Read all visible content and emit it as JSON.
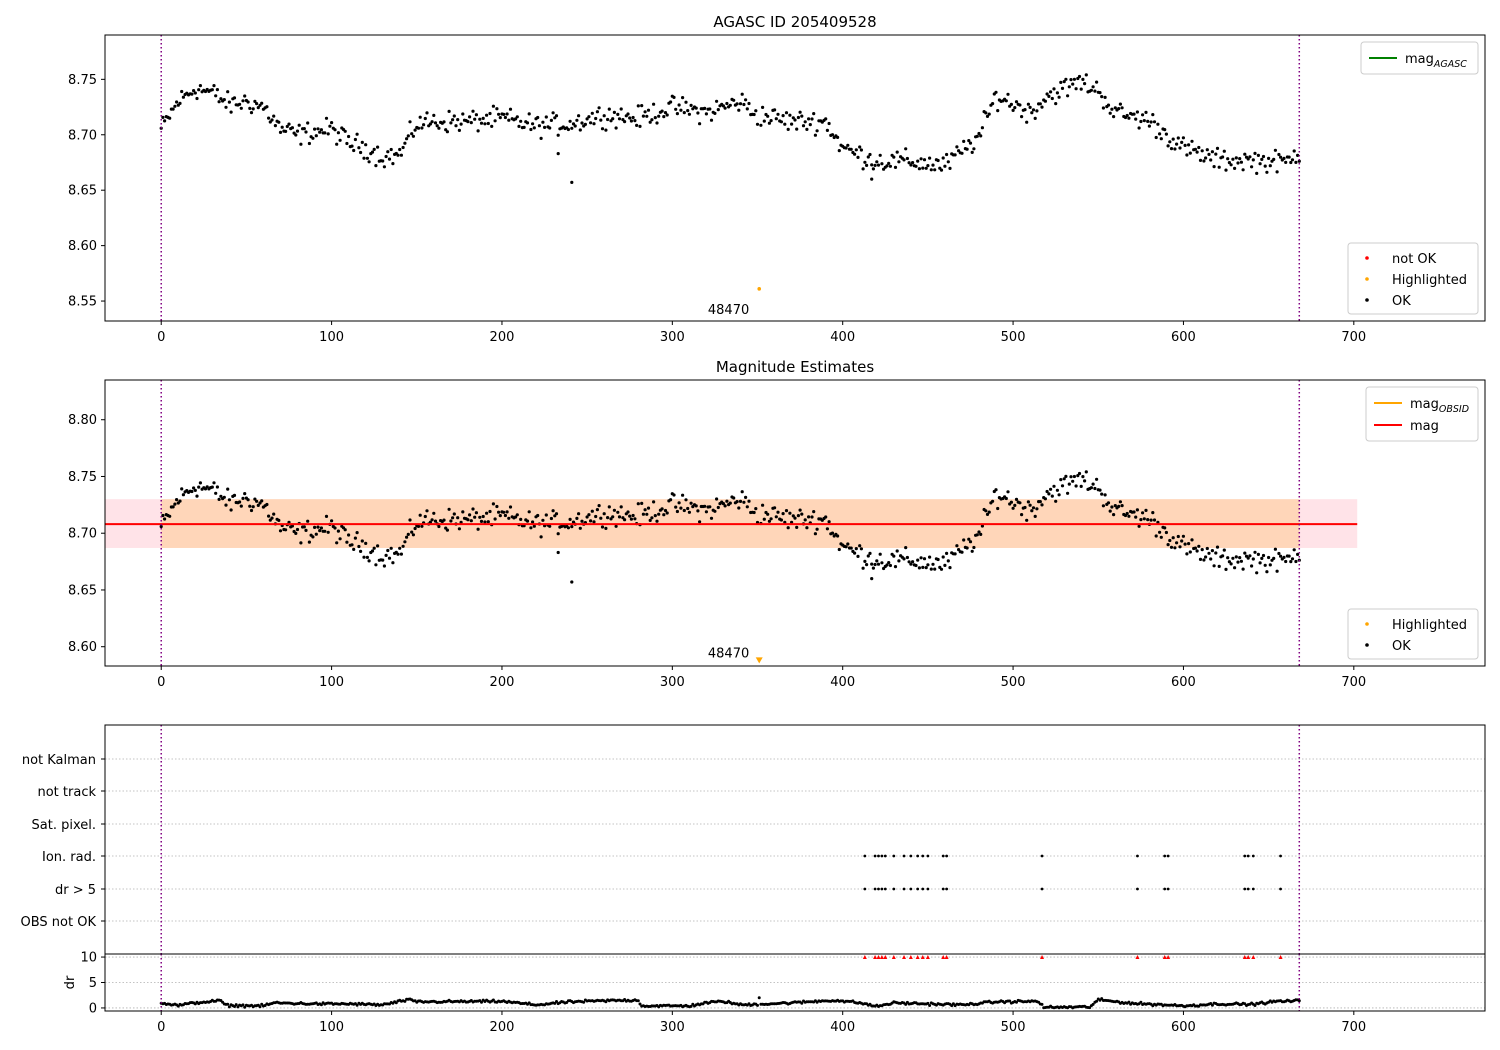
{
  "figure": {
    "obsid_label": "48470"
  },
  "chart_data": [
    {
      "type": "scatter",
      "title": "AGASC ID 205409528",
      "xlim": [
        -33,
        777
      ],
      "ylim": [
        8.532,
        8.79
      ],
      "x_ticks": [
        0,
        100,
        200,
        300,
        400,
        500,
        600,
        700
      ],
      "y_ticks": [
        "8.55",
        "8.60",
        "8.65",
        "8.70",
        "8.75"
      ],
      "vlines": [
        0,
        668
      ],
      "line_legend": {
        "placement": "upper-right",
        "entries": [
          {
            "label": "mag",
            "subscript": "AGASC",
            "color": "#008000"
          }
        ]
      },
      "point_legend": {
        "placement": "lower-right",
        "entries": [
          {
            "label": "not OK",
            "color": "#ff0000"
          },
          {
            "label": "Highlighted",
            "color": "#ffa500"
          },
          {
            "label": "OK",
            "color": "#000000"
          }
        ]
      },
      "highlighted": {
        "x": 351,
        "y": 8.561
      },
      "annotation": {
        "text_key": "obsid_label",
        "x": 333,
        "y": 8.542
      },
      "series_profile": [
        [
          0,
          8.705
        ],
        [
          10,
          8.73
        ],
        [
          20,
          8.742
        ],
        [
          30,
          8.738
        ],
        [
          40,
          8.727
        ],
        [
          50,
          8.73
        ],
        [
          60,
          8.725
        ],
        [
          70,
          8.705
        ],
        [
          80,
          8.7
        ],
        [
          90,
          8.703
        ],
        [
          100,
          8.705
        ],
        [
          110,
          8.693
        ],
        [
          120,
          8.688
        ],
        [
          130,
          8.68
        ],
        [
          140,
          8.682
        ],
        [
          150,
          8.71
        ],
        [
          160,
          8.712
        ],
        [
          180,
          8.712
        ],
        [
          200,
          8.715
        ],
        [
          220,
          8.708
        ],
        [
          240,
          8.71
        ],
        [
          260,
          8.718
        ],
        [
          280,
          8.715
        ],
        [
          300,
          8.725
        ],
        [
          320,
          8.72
        ],
        [
          340,
          8.73
        ],
        [
          350,
          8.718
        ],
        [
          370,
          8.712
        ],
        [
          390,
          8.712
        ],
        [
          400,
          8.688
        ],
        [
          420,
          8.676
        ],
        [
          440,
          8.676
        ],
        [
          460,
          8.672
        ],
        [
          480,
          8.698
        ],
        [
          490,
          8.735
        ],
        [
          500,
          8.728
        ],
        [
          510,
          8.72
        ],
        [
          520,
          8.735
        ],
        [
          540,
          8.748
        ],
        [
          550,
          8.74
        ],
        [
          560,
          8.72
        ],
        [
          580,
          8.713
        ],
        [
          590,
          8.7
        ],
        [
          600,
          8.688
        ],
        [
          620,
          8.677
        ],
        [
          640,
          8.677
        ],
        [
          660,
          8.675
        ],
        [
          668,
          8.685
        ]
      ],
      "outliers": [
        {
          "x": 241,
          "y": 8.657
        },
        {
          "x": 233,
          "y": 8.683
        },
        {
          "x": 417,
          "y": 8.66
        }
      ]
    },
    {
      "type": "scatter",
      "title": "Magnitude Estimates",
      "xlim": [
        -33,
        777
      ],
      "ylim": [
        8.583,
        8.835
      ],
      "x_ticks": [
        0,
        100,
        200,
        300,
        400,
        500,
        600,
        700
      ],
      "y_ticks": [
        "8.60",
        "8.65",
        "8.70",
        "8.75",
        "8.80"
      ],
      "vlines": [
        0,
        668
      ],
      "mag_line": {
        "y": 8.708,
        "x0": -33,
        "x1": 702,
        "color": "#ff0000"
      },
      "band_pink": {
        "y0": 8.687,
        "y1": 8.73,
        "x0": -33,
        "x1": 702
      },
      "band_orange": {
        "y0": 8.687,
        "y1": 8.73,
        "x0": 0,
        "x1": 668
      },
      "line_legend": {
        "placement": "upper-right",
        "entries": [
          {
            "label": "mag",
            "subscript": "OBSID",
            "color": "#ffa500"
          },
          {
            "label": "mag",
            "subscript": "",
            "color": "#ff0000"
          }
        ]
      },
      "point_legend": {
        "placement": "lower-right",
        "entries": [
          {
            "label": "Highlighted",
            "color": "#ffa500"
          },
          {
            "label": "OK",
            "color": "#000000"
          }
        ]
      },
      "highlighted": {
        "x": 351,
        "y": 8.588
      },
      "annotation": {
        "text_key": "obsid_label",
        "x": 333,
        "y": 8.594
      }
    },
    {
      "type": "scatter",
      "title": "",
      "xlim": [
        -33,
        777
      ],
      "categories": [
        "OBS not OK",
        "dr > 5",
        "Ion. rad.",
        "Sat. pixel.",
        "not track",
        "not Kalman"
      ],
      "vlines": [
        0,
        668
      ],
      "flag_x": [
        413,
        419,
        421,
        423,
        425,
        430,
        436,
        440,
        444,
        447,
        450,
        459,
        461,
        517,
        573,
        589,
        591,
        636,
        638,
        641,
        657
      ],
      "flag_rows": [
        "dr > 5",
        "Ion. rad."
      ]
    },
    {
      "type": "scatter",
      "title": "",
      "ylabel": "dr",
      "xlim": [
        -33,
        777
      ],
      "ylim": [
        -0.6,
        10.6
      ],
      "x_ticks": [
        0,
        100,
        200,
        300,
        400,
        500,
        600,
        700
      ],
      "y_ticks": [
        "0",
        "5",
        "10"
      ],
      "vlines": [
        0,
        668
      ],
      "clip_value": 10,
      "clip_x": [
        413,
        419,
        421,
        423,
        425,
        430,
        436,
        440,
        444,
        447,
        450,
        459,
        461,
        517,
        573,
        589,
        591,
        636,
        638,
        641,
        657
      ],
      "dr_profile": [
        [
          0,
          1.0
        ],
        [
          10,
          0.5
        ],
        [
          20,
          1.0
        ],
        [
          30,
          1.3
        ],
        [
          35,
          1.4
        ],
        [
          38,
          0.5
        ],
        [
          60,
          0.4
        ],
        [
          66,
          1.0
        ],
        [
          90,
          0.8
        ],
        [
          110,
          0.8
        ],
        [
          130,
          0.6
        ],
        [
          145,
          1.6
        ],
        [
          150,
          1.2
        ],
        [
          200,
          1.3
        ],
        [
          220,
          0.6
        ],
        [
          240,
          1.2
        ],
        [
          270,
          1.5
        ],
        [
          280,
          1.5
        ],
        [
          282,
          0.4
        ],
        [
          310,
          0.4
        ],
        [
          320,
          1.0
        ],
        [
          330,
          1.3
        ],
        [
          340,
          0.6
        ],
        [
          370,
          1.0
        ],
        [
          395,
          1.5
        ],
        [
          410,
          1.0
        ],
        [
          420,
          0.3
        ],
        [
          430,
          1.0
        ],
        [
          470,
          0.6
        ],
        [
          490,
          1.2
        ],
        [
          515,
          1.3
        ],
        [
          518,
          0.1
        ],
        [
          545,
          0.2
        ],
        [
          550,
          1.6
        ],
        [
          570,
          0.9
        ],
        [
          590,
          0.6
        ],
        [
          600,
          0.4
        ],
        [
          620,
          0.8
        ],
        [
          640,
          0.7
        ],
        [
          655,
          1.3
        ],
        [
          668,
          1.4
        ]
      ],
      "dr_outlier": {
        "x": 351,
        "y": 2.0
      }
    }
  ]
}
